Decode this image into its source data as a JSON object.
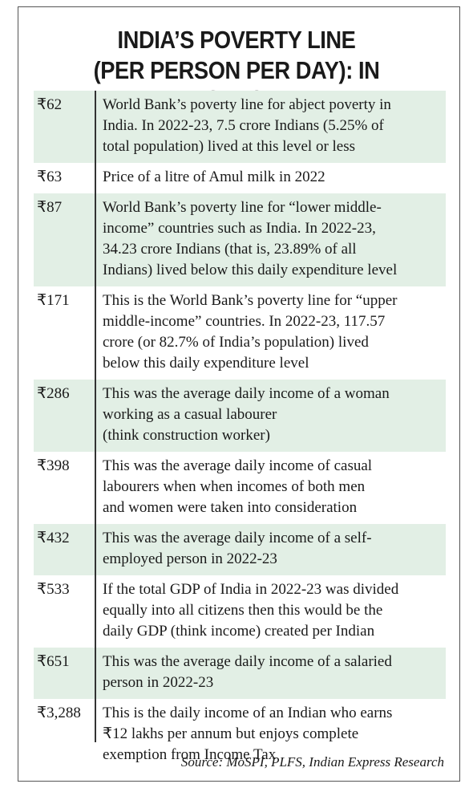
{
  "header": {
    "title_lines": [
      "INDIA’S POVERTY LINE",
      "(PER PERSON PER DAY): IN PERSPECTIVE"
    ]
  },
  "table": {
    "rows": [
      {
        "amount": "₹62",
        "lines": [
          "World Bank’s poverty line for abject poverty in",
          "India. In 2022-23, 7.5 crore Indians (5.25% of",
          "total population) lived at this level or less"
        ]
      },
      {
        "amount": "₹63",
        "lines": [
          "Price of a litre of Amul milk in 2022"
        ]
      },
      {
        "amount": "₹87",
        "lines": [
          "World Bank’s poverty line for “lower middle-",
          "income” countries such as India. In 2022-23,",
          "34.23 crore Indians (that is, 23.89% of all",
          "Indians) lived below this daily expenditure level"
        ]
      },
      {
        "amount": "₹171",
        "lines": [
          "This is the World Bank’s poverty line for “upper",
          "middle-income” countries. In 2022-23, 117.57",
          "crore (or 82.7% of India’s population) lived",
          "below this daily expenditure level"
        ]
      },
      {
        "amount": "₹286",
        "lines": [
          "This was the average daily income of a woman",
          "working as a casual labourer",
          "(think construction worker)"
        ]
      },
      {
        "amount": "₹398",
        "lines": [
          "This was the average daily income of casual",
          "labourers when when incomes of both men",
          "and women were taken into consideration"
        ]
      },
      {
        "amount": "₹432",
        "lines": [
          "This was the average daily income of a self-",
          "employed person in 2022-23"
        ]
      },
      {
        "amount": "₹533",
        "lines": [
          "If the total GDP of India in 2022-23 was divided",
          "equally into all citizens then this would be the",
          "daily GDP (think income) created per Indian"
        ]
      },
      {
        "amount": "₹651",
        "lines": [
          "This was the average daily income of a salaried",
          "person in 2022-23"
        ]
      },
      {
        "amount": "₹3,288",
        "lines": [
          "This is the daily income of an Indian who earns",
          "₹12 lakhs per annum but enjoys complete",
          "exemption from Income Tax"
        ]
      }
    ]
  },
  "footer": {
    "source": "Source: MoSPI, PLFS, Indian Express Research"
  }
}
